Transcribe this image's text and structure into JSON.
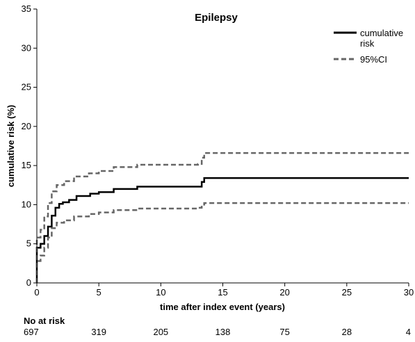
{
  "chart_data": {
    "type": "line",
    "title": "Epilepsy",
    "xlabel": "time after index event (years)",
    "ylabel": "cumulative risk (%)",
    "xlim": [
      0,
      30
    ],
    "ylim": [
      0,
      35
    ],
    "xticks": [
      0,
      5,
      10,
      15,
      20,
      25,
      30
    ],
    "yticks": [
      0,
      5,
      10,
      15,
      20,
      25,
      30,
      35
    ],
    "grid": false,
    "legend_position": "top-right",
    "series": [
      {
        "name": "cumulative risk",
        "legend_lines": [
          "cumulative",
          "risk"
        ],
        "style": "solid",
        "color": "#000000",
        "points": [
          [
            0,
            0
          ],
          [
            0,
            4.5
          ],
          [
            0.3,
            5.0
          ],
          [
            0.6,
            6.0
          ],
          [
            0.9,
            7.2
          ],
          [
            1.2,
            8.6
          ],
          [
            1.5,
            9.6
          ],
          [
            1.8,
            10.1
          ],
          [
            2.1,
            10.3
          ],
          [
            2.6,
            10.6
          ],
          [
            3.2,
            11.1
          ],
          [
            4.3,
            11.4
          ],
          [
            5.0,
            11.6
          ],
          [
            6.2,
            12.0
          ],
          [
            8.1,
            12.3
          ],
          [
            13.0,
            12.3
          ],
          [
            13.3,
            12.9
          ],
          [
            13.5,
            13.4
          ],
          [
            30,
            13.4
          ]
        ]
      },
      {
        "name": "95%CI",
        "style": "dashed",
        "color": "#666666",
        "points": [
          [
            0,
            0
          ],
          [
            0,
            5.8
          ],
          [
            0.3,
            6.8
          ],
          [
            0.6,
            8.5
          ],
          [
            0.9,
            10.2
          ],
          [
            1.2,
            11.7
          ],
          [
            1.6,
            12.5
          ],
          [
            2.2,
            13.0
          ],
          [
            3.0,
            13.6
          ],
          [
            4.2,
            14.0
          ],
          [
            5.0,
            14.3
          ],
          [
            6.2,
            14.8
          ],
          [
            8.1,
            15.1
          ],
          [
            13.0,
            15.2
          ],
          [
            13.3,
            16.0
          ],
          [
            13.5,
            16.6
          ],
          [
            30,
            16.6
          ]
        ]
      },
      {
        "name": "95%CI lower",
        "style": "dashed",
        "color": "#666666",
        "in_legend": false,
        "points": [
          [
            0,
            0
          ],
          [
            0,
            2.8
          ],
          [
            0.3,
            3.5
          ],
          [
            0.6,
            4.5
          ],
          [
            0.9,
            5.8
          ],
          [
            1.2,
            7.0
          ],
          [
            1.6,
            7.7
          ],
          [
            2.2,
            8.0
          ],
          [
            3.0,
            8.5
          ],
          [
            4.2,
            8.8
          ],
          [
            5.0,
            9.0
          ],
          [
            6.2,
            9.3
          ],
          [
            8.1,
            9.5
          ],
          [
            13.0,
            9.6
          ],
          [
            13.3,
            10.0
          ],
          [
            13.5,
            10.2
          ],
          [
            30,
            10.2
          ]
        ]
      }
    ],
    "risk_table": {
      "title": "No at risk",
      "values": [
        697,
        319,
        205,
        138,
        75,
        28,
        4
      ]
    }
  }
}
